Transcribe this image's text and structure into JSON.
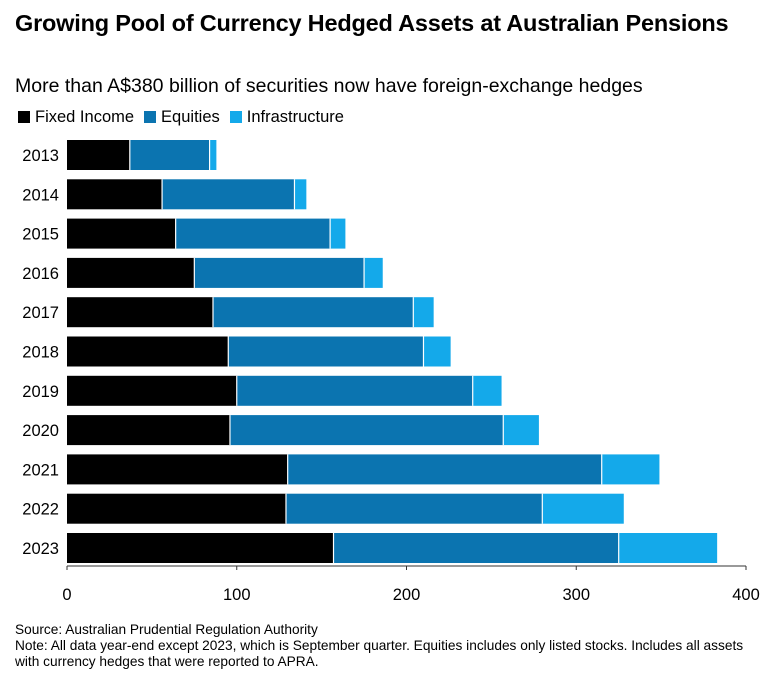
{
  "colors": {
    "fixed_income": "#000000",
    "equities": "#0b74b0",
    "infrastructure": "#14a9ea",
    "axis": "#333333",
    "separator": "#ffffff"
  },
  "chart_data": {
    "type": "bar",
    "orientation": "horizontal",
    "stacked": true,
    "title": "Growing Pool of Currency Hedged Assets at Australian Pensions",
    "subtitle": "More than A$380 billion of securities now have foreign-exchange hedges",
    "legend_position": "top-left",
    "grid": false,
    "xlabel": "",
    "ylabel": "",
    "xlim": [
      0,
      400
    ],
    "x_ticks": [
      0,
      100,
      200,
      300,
      400
    ],
    "categories": [
      "2013",
      "2014",
      "2015",
      "2016",
      "2017",
      "2018",
      "2019",
      "2020",
      "2021",
      "2022",
      "2023"
    ],
    "series": [
      {
        "name": "Fixed Income",
        "values": [
          37,
          56,
          64,
          75,
          86,
          95,
          100,
          96,
          130,
          129,
          157
        ]
      },
      {
        "name": "Equities",
        "values": [
          47,
          78,
          91,
          100,
          118,
          115,
          139,
          161,
          185,
          151,
          168
        ]
      },
      {
        "name": "Infrastructure",
        "values": [
          4,
          7,
          9,
          11,
          12,
          16,
          17,
          21,
          34,
          48,
          58
        ]
      }
    ]
  },
  "footer": {
    "source": "Source: Australian Prudential Regulation Authority",
    "note": "Note: All data year-end except 2023, which is September quarter. Equities includes only listed stocks. Includes all assets with currency hedges that were reported to APRA."
  }
}
